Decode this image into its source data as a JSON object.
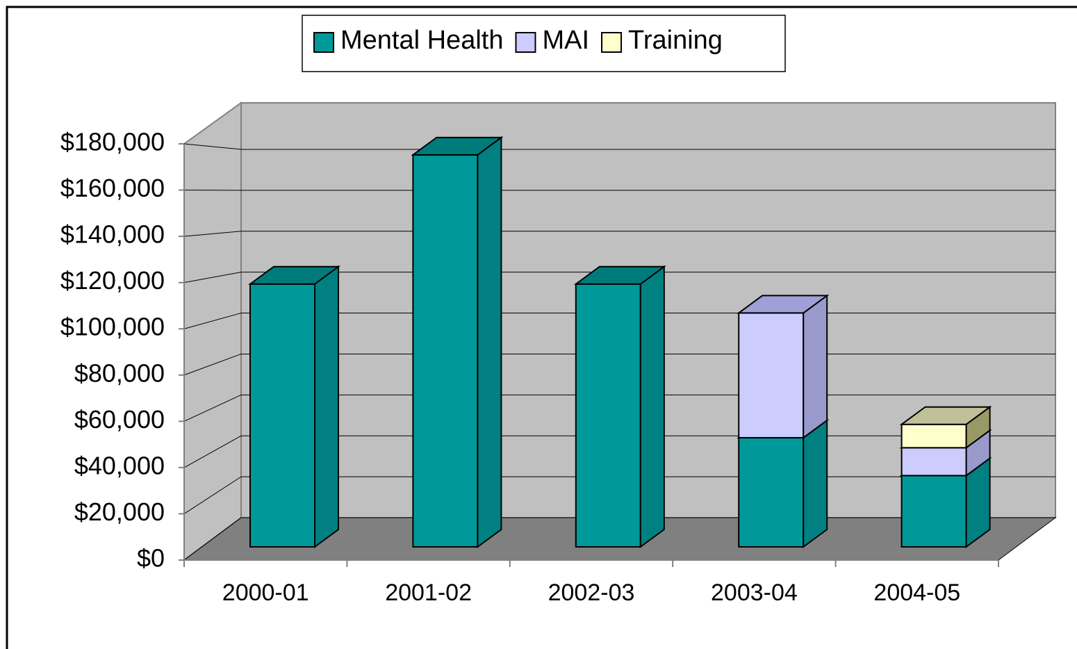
{
  "chart_data": {
    "type": "bar3d_stacked",
    "categories": [
      "2000-01",
      "2001-02",
      "2002-03",
      "2003-04",
      "2004-05"
    ],
    "series": [
      {
        "name": "Mental Health",
        "color": "#009999",
        "values": [
          118000,
          176000,
          118000,
          49000,
          32000
        ]
      },
      {
        "name": "MAI",
        "color": "#CCCCFF",
        "values": [
          0,
          0,
          0,
          56000,
          12500
        ]
      },
      {
        "name": "Training",
        "color": "#FFFFCC",
        "values": [
          0,
          0,
          0,
          0,
          10500
        ]
      }
    ],
    "ylim": [
      0,
      180000
    ],
    "yticks": [
      {
        "value": 0,
        "label": "$0"
      },
      {
        "value": 20000,
        "label": "$20,000"
      },
      {
        "value": 40000,
        "label": "$40,000"
      },
      {
        "value": 60000,
        "label": "$60,000"
      },
      {
        "value": 80000,
        "label": "$80,000"
      },
      {
        "value": 100000,
        "label": "$100,000"
      },
      {
        "value": 120000,
        "label": "$120,000"
      },
      {
        "value": 140000,
        "label": "$140,000"
      },
      {
        "value": 160000,
        "label": "$160,000"
      },
      {
        "value": 180000,
        "label": "$180,000"
      }
    ],
    "grid": true,
    "legend": "top"
  }
}
